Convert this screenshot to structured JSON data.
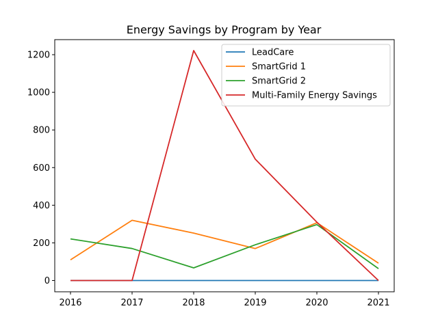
{
  "chart_data": {
    "type": "line",
    "title": "Energy Savings by Program by Year",
    "xlabel": "",
    "ylabel": "",
    "x": [
      "2016",
      "2017",
      "2018",
      "2019",
      "2020",
      "2021"
    ],
    "ylim": [
      -60,
      1280
    ],
    "yticks": [
      0,
      200,
      400,
      600,
      800,
      1000,
      1200
    ],
    "grid": false,
    "legend_position": "top-right",
    "series": [
      {
        "name": "LeadCare",
        "color": "#1f77b4",
        "values": [
          0,
          0,
          0,
          0,
          0,
          0
        ]
      },
      {
        "name": "SmartGrid 1",
        "color": "#ff7f0e",
        "values": [
          110,
          320,
          252,
          170,
          307,
          92
        ]
      },
      {
        "name": "SmartGrid 2",
        "color": "#2ca02c",
        "values": [
          221,
          170,
          67,
          190,
          297,
          63
        ]
      },
      {
        "name": "Multi-Family Energy Savings",
        "color": "#d62728",
        "values": [
          0,
          0,
          1222,
          645,
          310,
          0
        ]
      }
    ]
  }
}
